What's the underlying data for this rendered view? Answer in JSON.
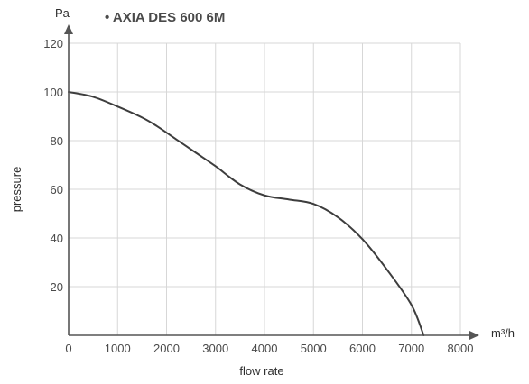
{
  "chart_data": {
    "type": "line",
    "title": "• AXIA DES 600 6M",
    "xlabel": "flow rate",
    "ylabel": "pressure",
    "x_unit": "m³/h",
    "y_unit": "Pa",
    "xlim": [
      0,
      8000
    ],
    "ylim": [
      0,
      120
    ],
    "x_ticks": [
      "0",
      "1000",
      "2000",
      "3000",
      "4000",
      "5000",
      "6000",
      "7000",
      "8000"
    ],
    "y_ticks": [
      "20",
      "40",
      "60",
      "80",
      "100",
      "120"
    ],
    "grid": true,
    "legend": "none",
    "series": [
      {
        "color": "#3d3d3d",
        "x": [
          0,
          500,
          1000,
          1500,
          1800,
          2200,
          2600,
          3000,
          3500,
          4000,
          4500,
          5000,
          5500,
          6000,
          6500,
          7000,
          7250
        ],
        "y": [
          100,
          98,
          94,
          89.5,
          86,
          80.5,
          75,
          69.5,
          62,
          57.5,
          55.8,
          54,
          48.5,
          39.5,
          27,
          12.5,
          0
        ]
      }
    ]
  }
}
